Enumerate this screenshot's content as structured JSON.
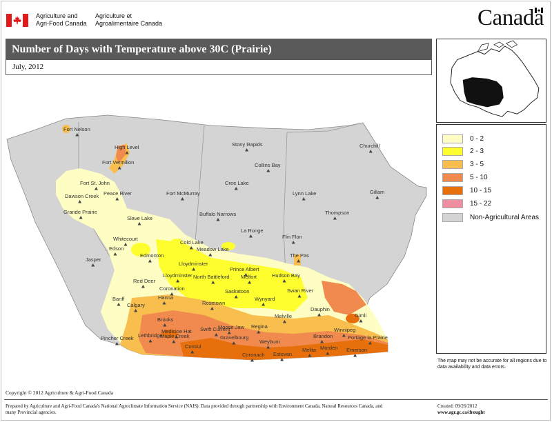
{
  "header": {
    "dept_en_line1": "Agriculture and",
    "dept_en_line2": "Agri-Food Canada",
    "dept_fr_line1": "Agriculture et",
    "dept_fr_line2": "Agroalimentaire Canada",
    "wordmark": "Canada"
  },
  "map": {
    "title": "Number of Days with Temperature above 30C (Prairie)",
    "period": "July, 2012",
    "cities": [
      "Fort Nelson",
      "High Level",
      "Fort Vermilion",
      "Stony Rapids",
      "Churchill",
      "Fort St. John",
      "Collins Bay",
      "Peace River",
      "Dawson Creek",
      "Cree Lake",
      "Lynn Lake",
      "Gillam",
      "Fort McMurray",
      "Grande Prairie",
      "Thompson",
      "Slave Lake",
      "Buffalo Narrows",
      "La Ronge",
      "Whitecourt",
      "Cold Lake",
      "Flin Flon",
      "Edson",
      "Meadow Lake",
      "The Pas",
      "Edmonton",
      "Jasper",
      "Lloydminster",
      "Prince Albert",
      "Lloydminster",
      "Melfort",
      "Hudson Bay",
      "Red Deer",
      "North Battleford",
      "Coronation",
      "Saskatoon",
      "Swan River",
      "Hanna",
      "Banff",
      "Rosetown",
      "Wynyard",
      "Calgary",
      "Dauphin",
      "Melville",
      "Gimli",
      "Brooks",
      "Medicine Hat",
      "Swift Current",
      "Moose Jaw",
      "Regina",
      "Winnipeg",
      "Portage la Prairie",
      "Pincher Creek",
      "Lethbridge",
      "Maple Creek",
      "Gravelbourg",
      "Brandon",
      "Weyburn",
      "Consul",
      "Melita",
      "Morden",
      "Emerson",
      "Coronach",
      "Estevan"
    ]
  },
  "legend": {
    "items": [
      {
        "label": "0 - 2",
        "color": "#fefec4"
      },
      {
        "label": "2 - 3",
        "color": "#fefe2e"
      },
      {
        "label": "3 - 5",
        "color": "#f8be4e"
      },
      {
        "label": "5 - 10",
        "color": "#f08a4e"
      },
      {
        "label": "10 - 15",
        "color": "#e8700c"
      },
      {
        "label": "15 - 22",
        "color": "#ee8ea0"
      },
      {
        "label": "Non-Agricultural Areas",
        "color": "#d4d4d4"
      }
    ]
  },
  "footer": {
    "disclaimer": "The map may not be accurate for all regions due to data availability and data errors.",
    "copyright": "Copyright © 2012 Agriculture & Agri-Food Canada",
    "prepared": "Prepared by Agriculture and Agri-Food Canada's National Agroclimate Information Service (NAIS). Data provided through partnership with Environment Canada, Natural Resources Canada, and many Provincial agencies.",
    "created": "Created: 09/26/2012",
    "url": "www.agr.gc.ca/drought"
  },
  "icons": {
    "gov_flag": "canada-flag-icon",
    "city_marker": "triangle-marker-icon"
  }
}
